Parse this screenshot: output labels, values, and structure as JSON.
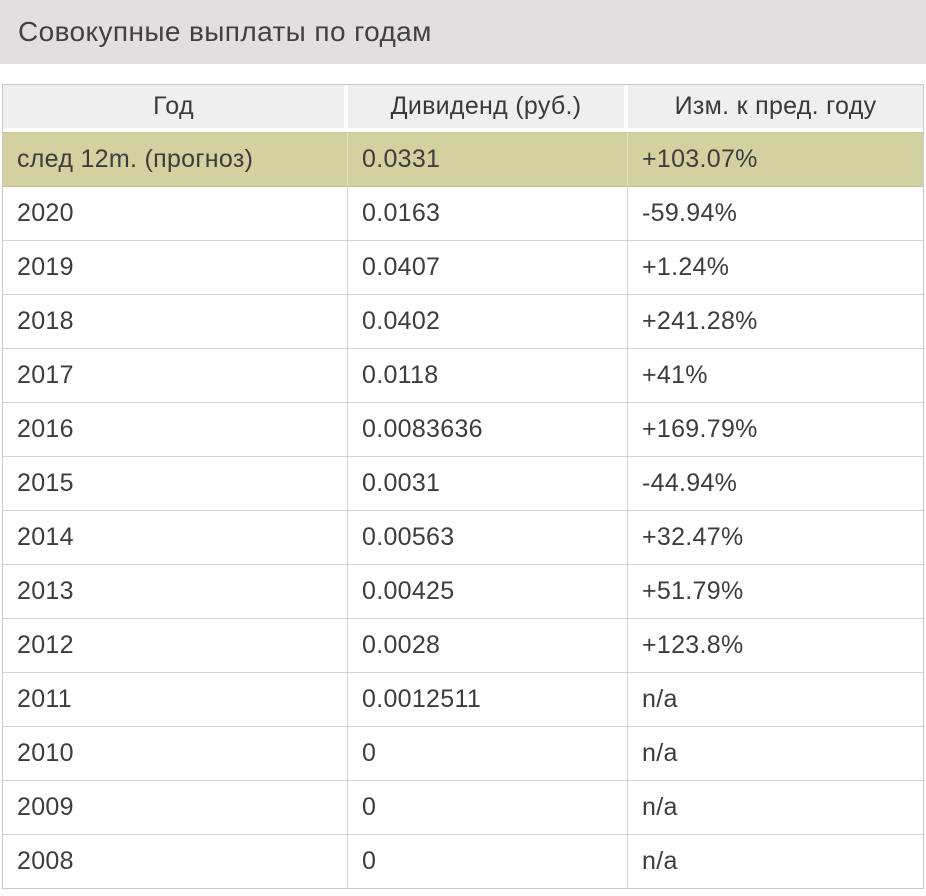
{
  "title_bar": {
    "title": "Совокупные выплаты по годам"
  },
  "table": {
    "columns": [
      {
        "label": "Год"
      },
      {
        "label": "Дивиденд (руб.)"
      },
      {
        "label": "Изм. к пред. году"
      }
    ],
    "rows": [
      {
        "year": "след 12m. (прогноз)",
        "dividend": "0.0331",
        "change": "+103.07%",
        "change_dir": "up",
        "highlight": true
      },
      {
        "year": "2020",
        "dividend": "0.0163",
        "change": "-59.94%",
        "change_dir": "down",
        "highlight": false
      },
      {
        "year": "2019",
        "dividend": "0.0407",
        "change": "+1.24%",
        "change_dir": "up",
        "highlight": false
      },
      {
        "year": "2018",
        "dividend": "0.0402",
        "change": "+241.28%",
        "change_dir": "up",
        "highlight": false
      },
      {
        "year": "2017",
        "dividend": "0.0118",
        "change": "+41%",
        "change_dir": "up",
        "highlight": false
      },
      {
        "year": "2016",
        "dividend": "0.0083636",
        "change": "+169.79%",
        "change_dir": "up",
        "highlight": false
      },
      {
        "year": "2015",
        "dividend": "0.0031",
        "change": "-44.94%",
        "change_dir": "down",
        "highlight": false
      },
      {
        "year": "2014",
        "dividend": "0.00563",
        "change": "+32.47%",
        "change_dir": "up",
        "highlight": false
      },
      {
        "year": "2013",
        "dividend": "0.00425",
        "change": "+51.79%",
        "change_dir": "up",
        "highlight": false
      },
      {
        "year": "2012",
        "dividend": "0.0028",
        "change": "+123.8%",
        "change_dir": "up",
        "highlight": false
      },
      {
        "year": "2011",
        "dividend": "0.0012511",
        "change": "n/a",
        "change_dir": "none",
        "highlight": false
      },
      {
        "year": "2010",
        "dividend": "0",
        "change": "n/a",
        "change_dir": "none",
        "highlight": false
      },
      {
        "year": "2009",
        "dividend": "0",
        "change": "n/a",
        "change_dir": "none",
        "highlight": false
      },
      {
        "year": "2008",
        "dividend": "0",
        "change": "n/a",
        "change_dir": "none",
        "highlight": false
      }
    ]
  },
  "colors": {
    "positive_change": "#178a1e",
    "negative_change": "#ef1111",
    "highlight_row_bg": "#d4d1a0",
    "header_row_bg": "#f0efef",
    "title_bar_bg": "#e1dfe0",
    "grid_line": "#d4d4d4",
    "text": "#3d3d3d"
  }
}
